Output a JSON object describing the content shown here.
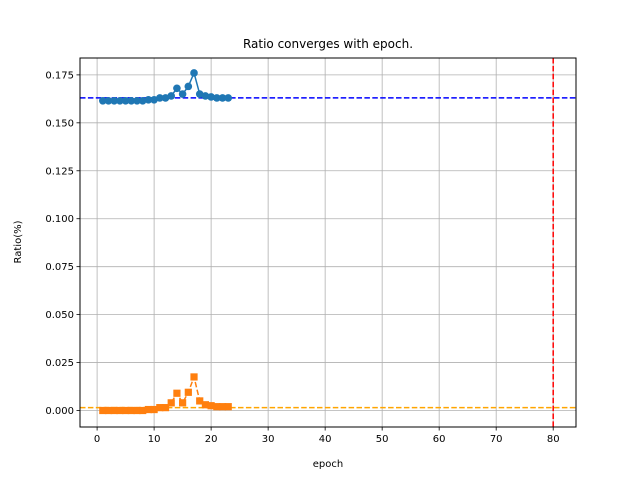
{
  "chart_data": {
    "type": "line",
    "title": "Ratio converges with epoch.",
    "xlabel": "epoch",
    "ylabel": "Ratio(%)",
    "xlim": [
      -3,
      84
    ],
    "ylim": [
      -0.0086,
      0.1838
    ],
    "xticks": [
      0,
      10,
      20,
      30,
      40,
      50,
      60,
      70,
      80
    ],
    "xtick_labels": [
      "0",
      "10",
      "20",
      "30",
      "40",
      "50",
      "60",
      "70",
      "80"
    ],
    "yticks": [
      0.0,
      0.025,
      0.05,
      0.075,
      0.1,
      0.125,
      0.15,
      0.175
    ],
    "ytick_labels": [
      "0.000",
      "0.025",
      "0.050",
      "0.075",
      "0.100",
      "0.125",
      "0.150",
      "0.175"
    ],
    "grid": true,
    "x": [
      1,
      2,
      3,
      4,
      5,
      6,
      7,
      8,
      9,
      10,
      11,
      12,
      13,
      14,
      15,
      16,
      17,
      18,
      19,
      20,
      21,
      22,
      23
    ],
    "series": [
      {
        "color": "#1f77b4",
        "marker": "circle",
        "line_style": "solid",
        "values": [
          0.1615,
          0.1615,
          0.1615,
          0.1615,
          0.1615,
          0.1615,
          0.1615,
          0.1615,
          0.162,
          0.162,
          0.163,
          0.163,
          0.164,
          0.168,
          0.165,
          0.169,
          0.176,
          0.165,
          0.164,
          0.1635,
          0.163,
          0.163,
          0.163
        ]
      },
      {
        "color": "#ff7f0e",
        "marker": "square",
        "line_style": "dashed",
        "values": [
          0.0,
          0.0,
          0.0,
          0.0,
          0.0,
          0.0,
          0.0,
          0.0,
          0.0005,
          0.0005,
          0.0015,
          0.0015,
          0.004,
          0.009,
          0.004,
          0.0095,
          0.0175,
          0.005,
          0.003,
          0.0025,
          0.002,
          0.002,
          0.002
        ]
      }
    ],
    "reference_lines": [
      {
        "orientation": "horizontal",
        "value": 0.163,
        "color": "#0000ff",
        "line_style": "dashed"
      },
      {
        "orientation": "horizontal",
        "value": 0.0015,
        "color": "#ffa500",
        "line_style": "dashed"
      },
      {
        "orientation": "vertical",
        "value": 80,
        "color": "#ff0000",
        "line_style": "dashed"
      }
    ]
  }
}
